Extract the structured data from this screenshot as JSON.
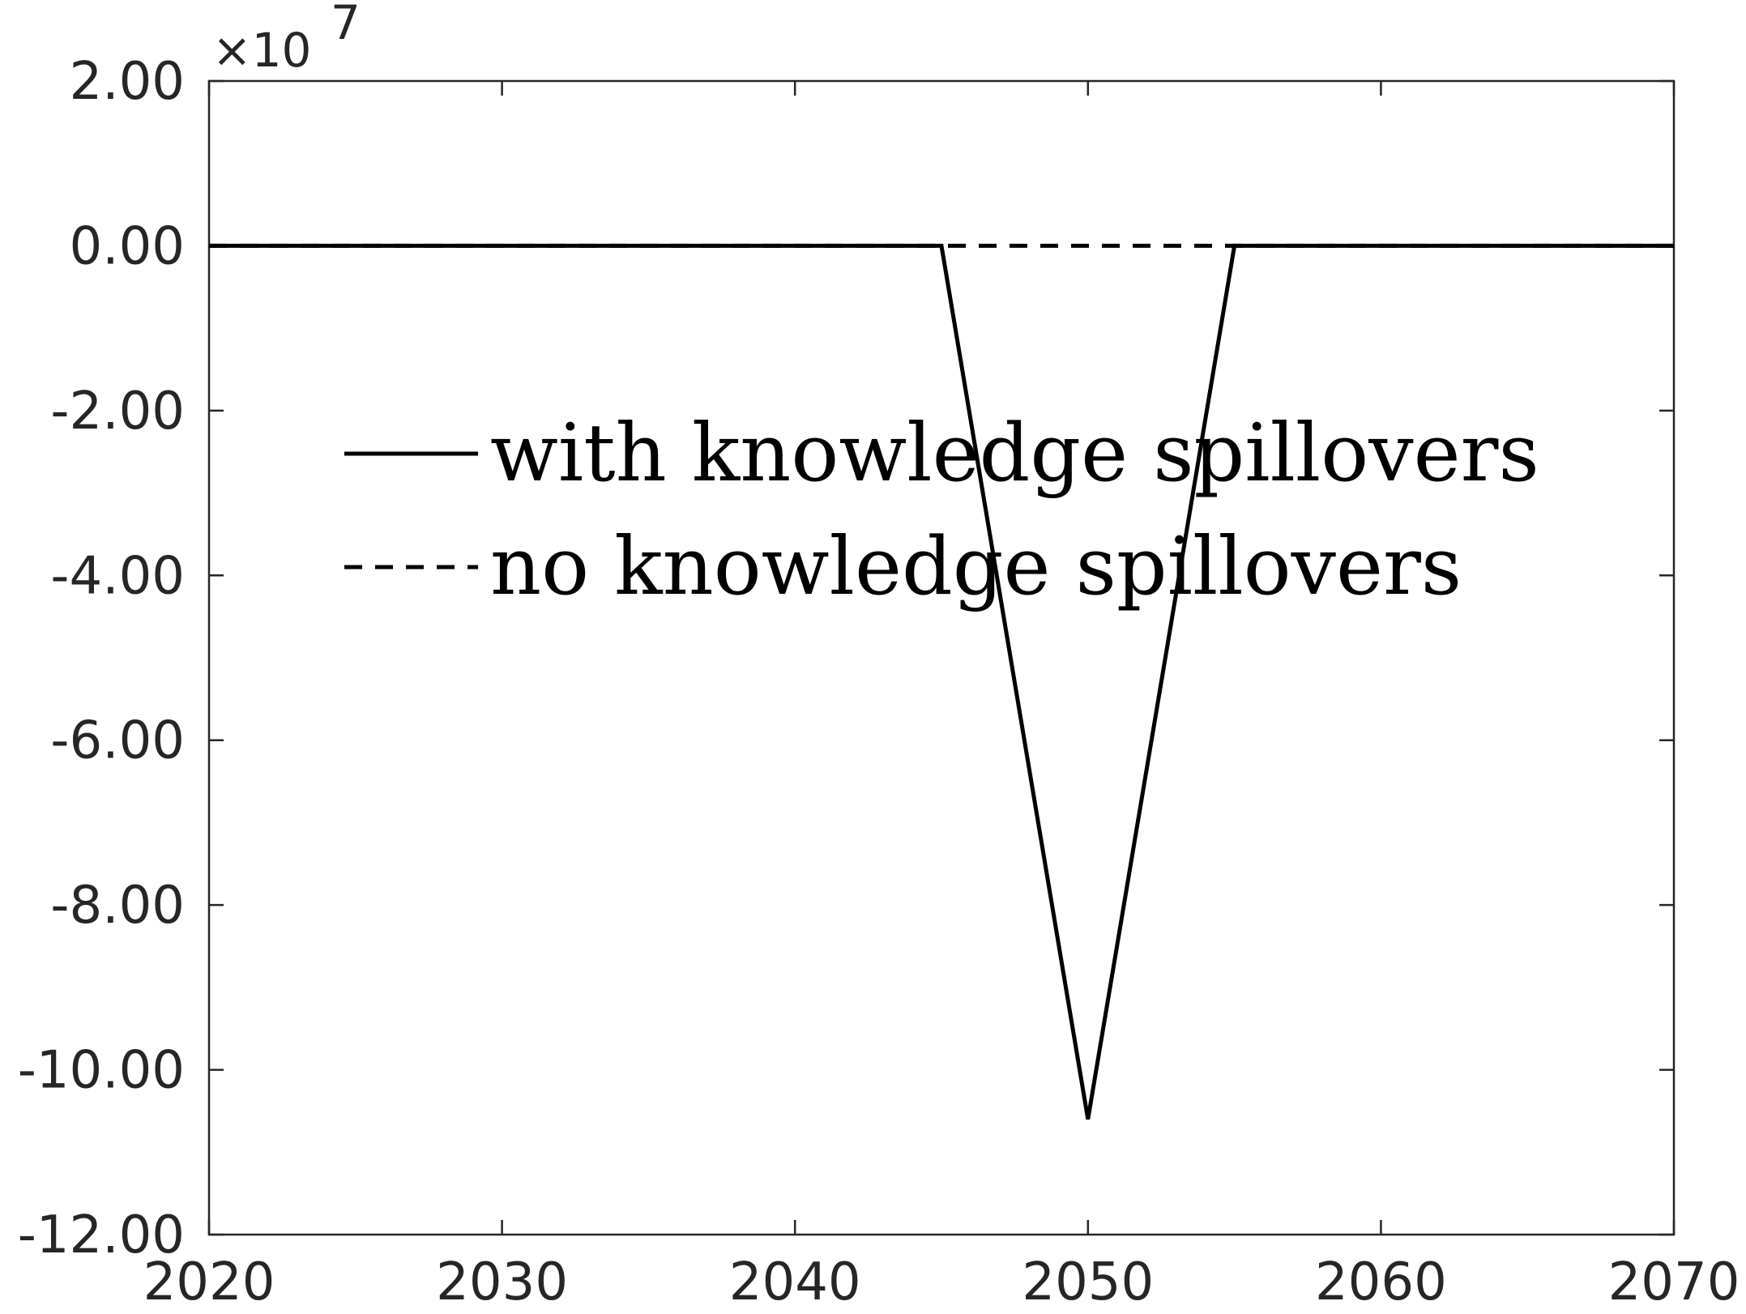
{
  "chart_data": {
    "type": "line",
    "title": "",
    "xlabel": "",
    "ylabel": "",
    "y_exponent_label": "×10",
    "y_exponent_power": "7",
    "xlim": [
      2020,
      2070
    ],
    "ylim": [
      -12.0,
      2.0
    ],
    "x_ticks": [
      2020,
      2030,
      2040,
      2050,
      2060,
      2070
    ],
    "x_tick_labels": [
      "2020",
      "2030",
      "2040",
      "2050",
      "2060",
      "2070"
    ],
    "y_ticks": [
      2.0,
      0.0,
      -2.0,
      -4.0,
      -6.0,
      -8.0,
      -10.0,
      -12.0
    ],
    "y_tick_labels": [
      "2.00",
      "0.00",
      "-2.00",
      "-4.00",
      "-6.00",
      "-8.00",
      "-10.00",
      "-12.00"
    ],
    "grid": false,
    "legend_position": "upper-center",
    "series": [
      {
        "name": "with knowledge spillovers",
        "line_style": "solid",
        "color": "#000000",
        "x": [
          2020,
          2045,
          2050,
          2055,
          2070
        ],
        "y": [
          0.0,
          0.0,
          -10.6,
          0.0,
          0.0
        ]
      },
      {
        "name": "no knowledge spillovers",
        "line_style": "dashed",
        "color": "#000000",
        "x": [
          2020,
          2070
        ],
        "y": [
          0.0,
          0.0
        ]
      }
    ]
  }
}
